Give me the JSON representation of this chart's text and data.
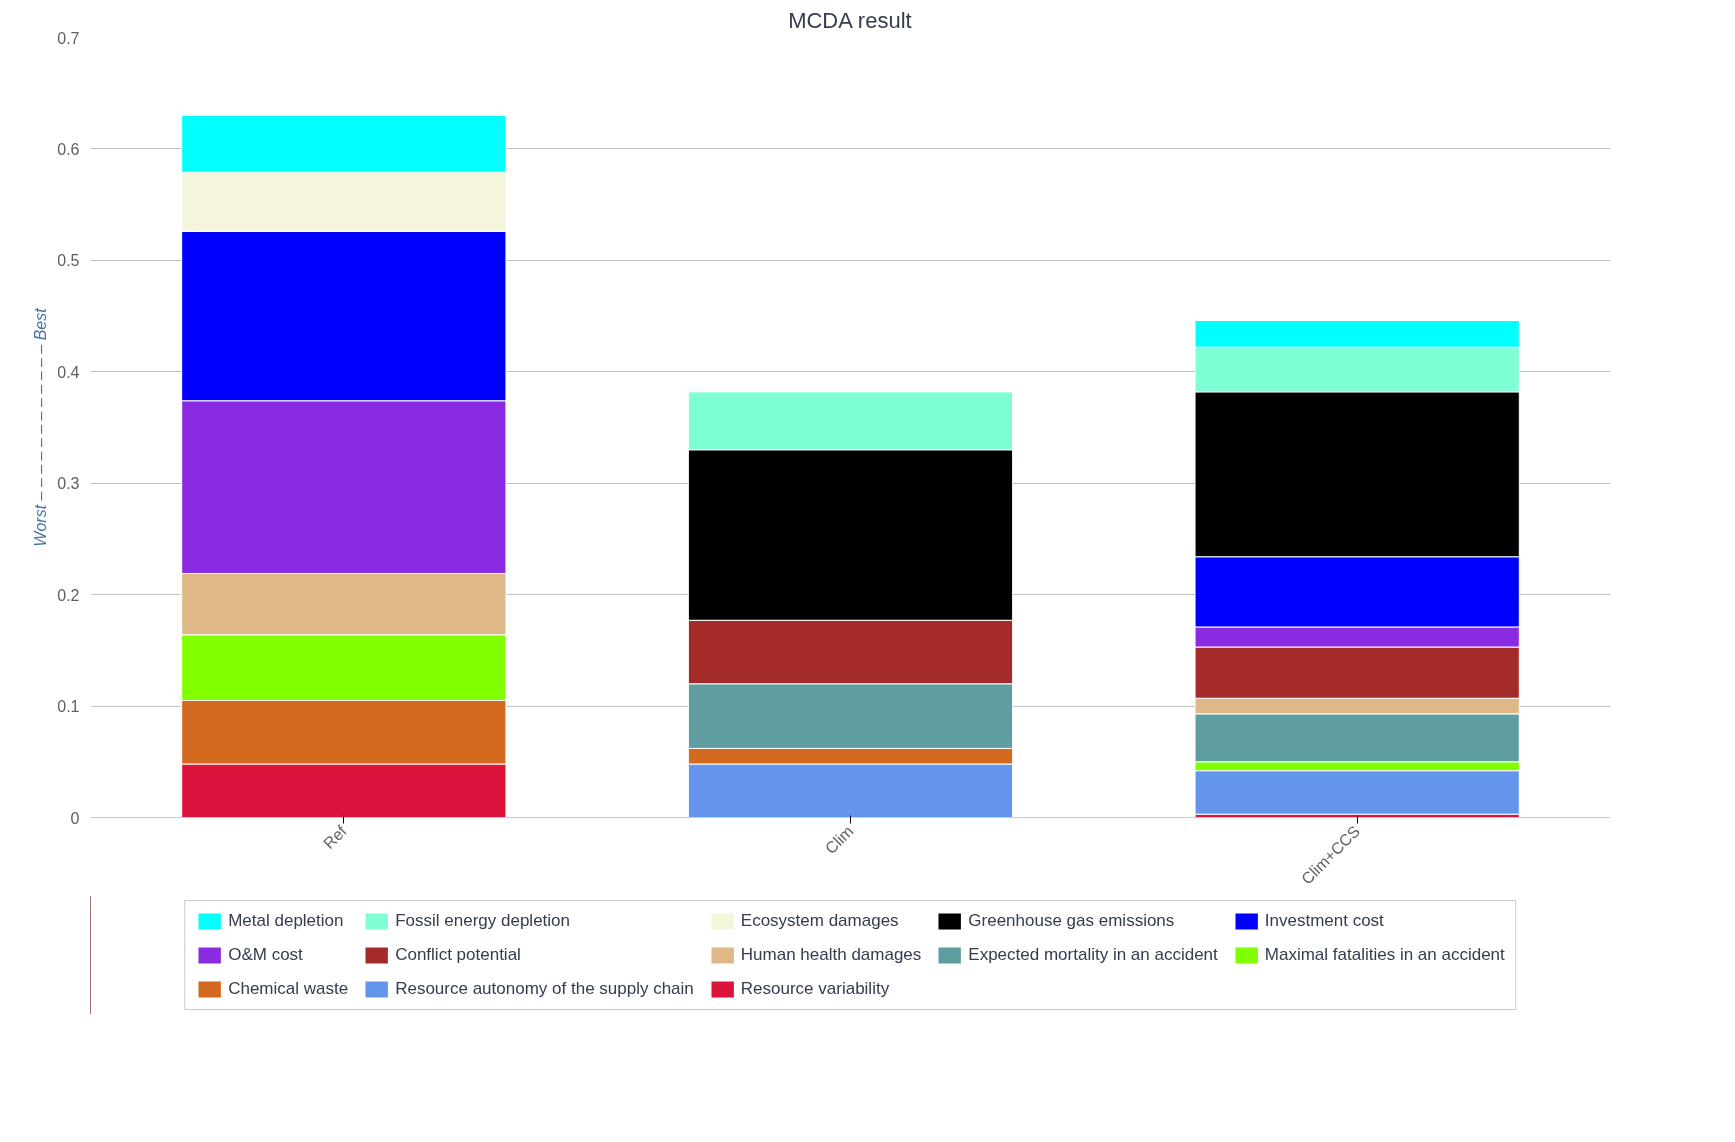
{
  "chart_data": {
    "type": "bar",
    "title": "MCDA result",
    "ylabel": "Worst – – – – – – – – – – – – Best",
    "categories": [
      "Ref",
      "Clim",
      "Clim+CCS"
    ],
    "stacked": true,
    "ylim": [
      0,
      0.7
    ],
    "yticks": [
      0,
      0.1,
      0.2,
      0.3,
      0.4,
      0.5,
      0.6,
      0.7
    ],
    "grid": "y",
    "legend": "bottom",
    "series": [
      {
        "name": "Resource variability",
        "color": "#dc143c",
        "values": [
          0.048,
          0,
          0.003
        ]
      },
      {
        "name": "Resource autonomy of the supply chain",
        "color": "#6495ed",
        "values": [
          0,
          0.048,
          0.039
        ]
      },
      {
        "name": "Chemical waste",
        "color": "#d2691e",
        "values": [
          0.057,
          0.014,
          0
        ]
      },
      {
        "name": "Maximal fatalities in an accident",
        "color": "#7fff00",
        "values": [
          0.059,
          0,
          0.008
        ]
      },
      {
        "name": "Expected mortality in an accident",
        "color": "#5f9ea0",
        "values": [
          0,
          0.058,
          0.043
        ]
      },
      {
        "name": "Human health damages",
        "color": "#deb887",
        "values": [
          0.055,
          0,
          0.014
        ]
      },
      {
        "name": "Conflict potential",
        "color": "#a52a2a",
        "values": [
          0,
          0.057,
          0.046
        ]
      },
      {
        "name": "O&M cost",
        "color": "#8a2be2",
        "values": [
          0.155,
          0,
          0.018
        ]
      },
      {
        "name": "Investment cost",
        "color": "#0000ff",
        "values": [
          0.152,
          0,
          0.063
        ]
      },
      {
        "name": "Greenhouse gas emissions",
        "color": "#000000",
        "values": [
          0,
          0.153,
          0.148
        ]
      },
      {
        "name": "Ecosystem damages",
        "color": "#f5f5dc",
        "values": [
          0.053,
          0,
          0
        ]
      },
      {
        "name": "Fossil energy depletion",
        "color": "#7fffd4",
        "values": [
          0,
          0.052,
          0.04
        ]
      },
      {
        "name": "Metal depletion",
        "color": "#00ffff",
        "values": [
          0.051,
          0,
          0.024
        ]
      }
    ]
  }
}
